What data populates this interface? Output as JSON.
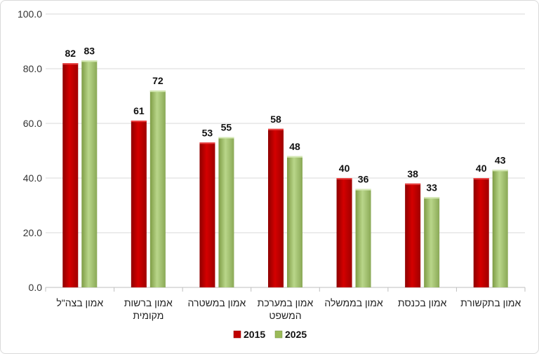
{
  "chart_data": {
    "type": "bar",
    "title": "",
    "xlabel": "",
    "ylabel": "",
    "ylim": [
      0,
      100
    ],
    "yticks": [
      "0.0",
      "20.0",
      "40.0",
      "60.0",
      "80.0",
      "100.0"
    ],
    "categories": [
      [
        "אמון בצה\"ל"
      ],
      [
        "אמון ברשות",
        "מקומית"
      ],
      [
        "אמון במשטרה"
      ],
      [
        "אמון במערכת",
        "המשפט"
      ],
      [
        "אמון בממשלה"
      ],
      [
        "אמון בכנסת"
      ],
      [
        "אמון בתקשורת"
      ]
    ],
    "series": [
      {
        "name": "2015",
        "color": "#c00000",
        "values": [
          82,
          61,
          53,
          58,
          40,
          38,
          40
        ]
      },
      {
        "name": "2025",
        "color": "#9bbb59",
        "values": [
          83,
          72,
          55,
          48,
          36,
          33,
          43
        ]
      }
    ],
    "grid": true,
    "legend_position": "bottom"
  }
}
